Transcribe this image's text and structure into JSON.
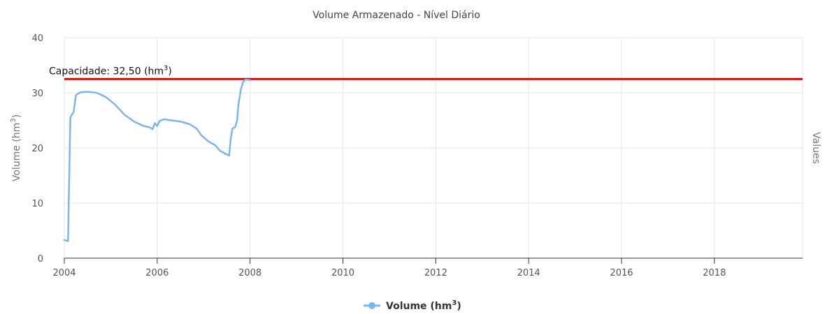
{
  "chart_data": {
    "type": "line",
    "title": "Volume Armazenado - Nível Diário",
    "ylabel": "Volume (hm³)",
    "ylabel_base": "Volume (hm",
    "ylabel_sup": "3",
    "ylabel_end": ")",
    "y2label": "Values",
    "xlabel": "",
    "xlim": [
      2004,
      2019.9
    ],
    "ylim": [
      0,
      40
    ],
    "x_ticks": [
      2004,
      2006,
      2008,
      2010,
      2012,
      2014,
      2016,
      2018
    ],
    "y_ticks": [
      0,
      10,
      20,
      30,
      40
    ],
    "grid": true,
    "legend_position": "bottom-center",
    "plot_lines": [
      {
        "name": "Capacidade: 32,50 (hm³)",
        "label_base": "Capacidade: 32,50 (hm",
        "label_sup": "3",
        "label_end": ")",
        "value": 32.5,
        "color": "#dd0000"
      }
    ],
    "series": [
      {
        "name": "Volume (hm³)",
        "legend_base": "Volume (hm",
        "legend_sup": "3",
        "legend_end": ")",
        "color": "#7cb5ec",
        "segments": [
          [
            [
              2004.0,
              3.3
            ],
            [
              2004.08,
              3.1
            ],
            [
              2004.1,
              12
            ],
            [
              2004.13,
              25.5
            ],
            [
              2004.16,
              26
            ],
            [
              2004.2,
              26.5
            ],
            [
              2004.25,
              29.6
            ],
            [
              2004.35,
              30.1
            ],
            [
              2004.5,
              30.2
            ],
            [
              2004.7,
              30.0
            ],
            [
              2004.9,
              29.2
            ],
            [
              2005.1,
              27.8
            ],
            [
              2005.3,
              26
            ],
            [
              2005.5,
              24.8
            ],
            [
              2005.7,
              24
            ],
            [
              2005.85,
              23.7
            ],
            [
              2005.9,
              23.4
            ],
            [
              2005.95,
              24.5
            ],
            [
              2006.0,
              24
            ]
          ],
          [
            [
              2006.0,
              24
            ],
            [
              2006.05,
              24.9
            ],
            [
              2006.15,
              25.2
            ],
            [
              2006.3,
              25.0
            ],
            [
              2006.5,
              24.8
            ],
            [
              2006.7,
              24.3
            ],
            [
              2006.85,
              23.5
            ],
            [
              2006.95,
              22.3
            ],
            [
              2007.1,
              21.2
            ],
            [
              2007.25,
              20.5
            ],
            [
              2007.35,
              19.5
            ],
            [
              2007.5,
              18.8
            ],
            [
              2007.55,
              18.6
            ],
            [
              2007.58,
              21.5
            ],
            [
              2007.62,
              23.5
            ],
            [
              2007.68,
              23.8
            ],
            [
              2007.72,
              25
            ],
            [
              2007.75,
              28
            ],
            [
              2007.8,
              30.5
            ],
            [
              2007.85,
              32
            ],
            [
              2007.9,
              32.4
            ],
            [
              2008.0,
              32.3
            ]
          ]
        ]
      }
    ]
  },
  "legend": {
    "label": "Volume (hm³)",
    "label_base": "Volume (hm",
    "label_sup": "3",
    "label_end": ")"
  }
}
